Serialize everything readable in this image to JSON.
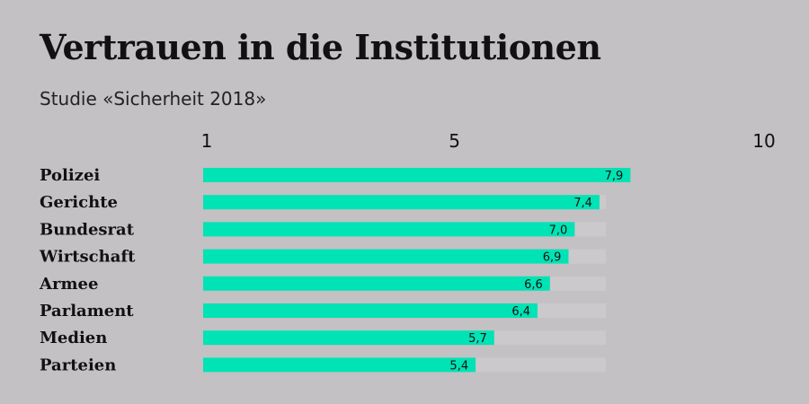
{
  "chart_data": {
    "type": "bar",
    "orientation": "horizontal",
    "title": "Vertrauen in die Institutionen",
    "subtitle": "Studie «Sicherheit 2018»",
    "categories": [
      "Polizei",
      "Gerichte",
      "Bundesrat",
      "Wirtschaft",
      "Armee",
      "Parlament",
      "Medien",
      "Parteien"
    ],
    "values": [
      7.9,
      7.4,
      7.0,
      6.9,
      6.6,
      6.4,
      5.7,
      5.4
    ],
    "value_labels": [
      "7,9",
      "7,4",
      "7,0",
      "6,9",
      "6,6",
      "6,4",
      "5,7",
      "5,4"
    ],
    "xlim": [
      1,
      10
    ],
    "x_ticks": [
      1,
      5,
      10
    ],
    "x_tick_labels": [
      "1",
      "5",
      "10"
    ],
    "x_axis_position": "top",
    "grid": false,
    "legend": "none",
    "colors": {
      "bar": "#00e3b4",
      "track": "#cbc9cb",
      "background": "#c3c1c3",
      "text": "#111111"
    }
  }
}
